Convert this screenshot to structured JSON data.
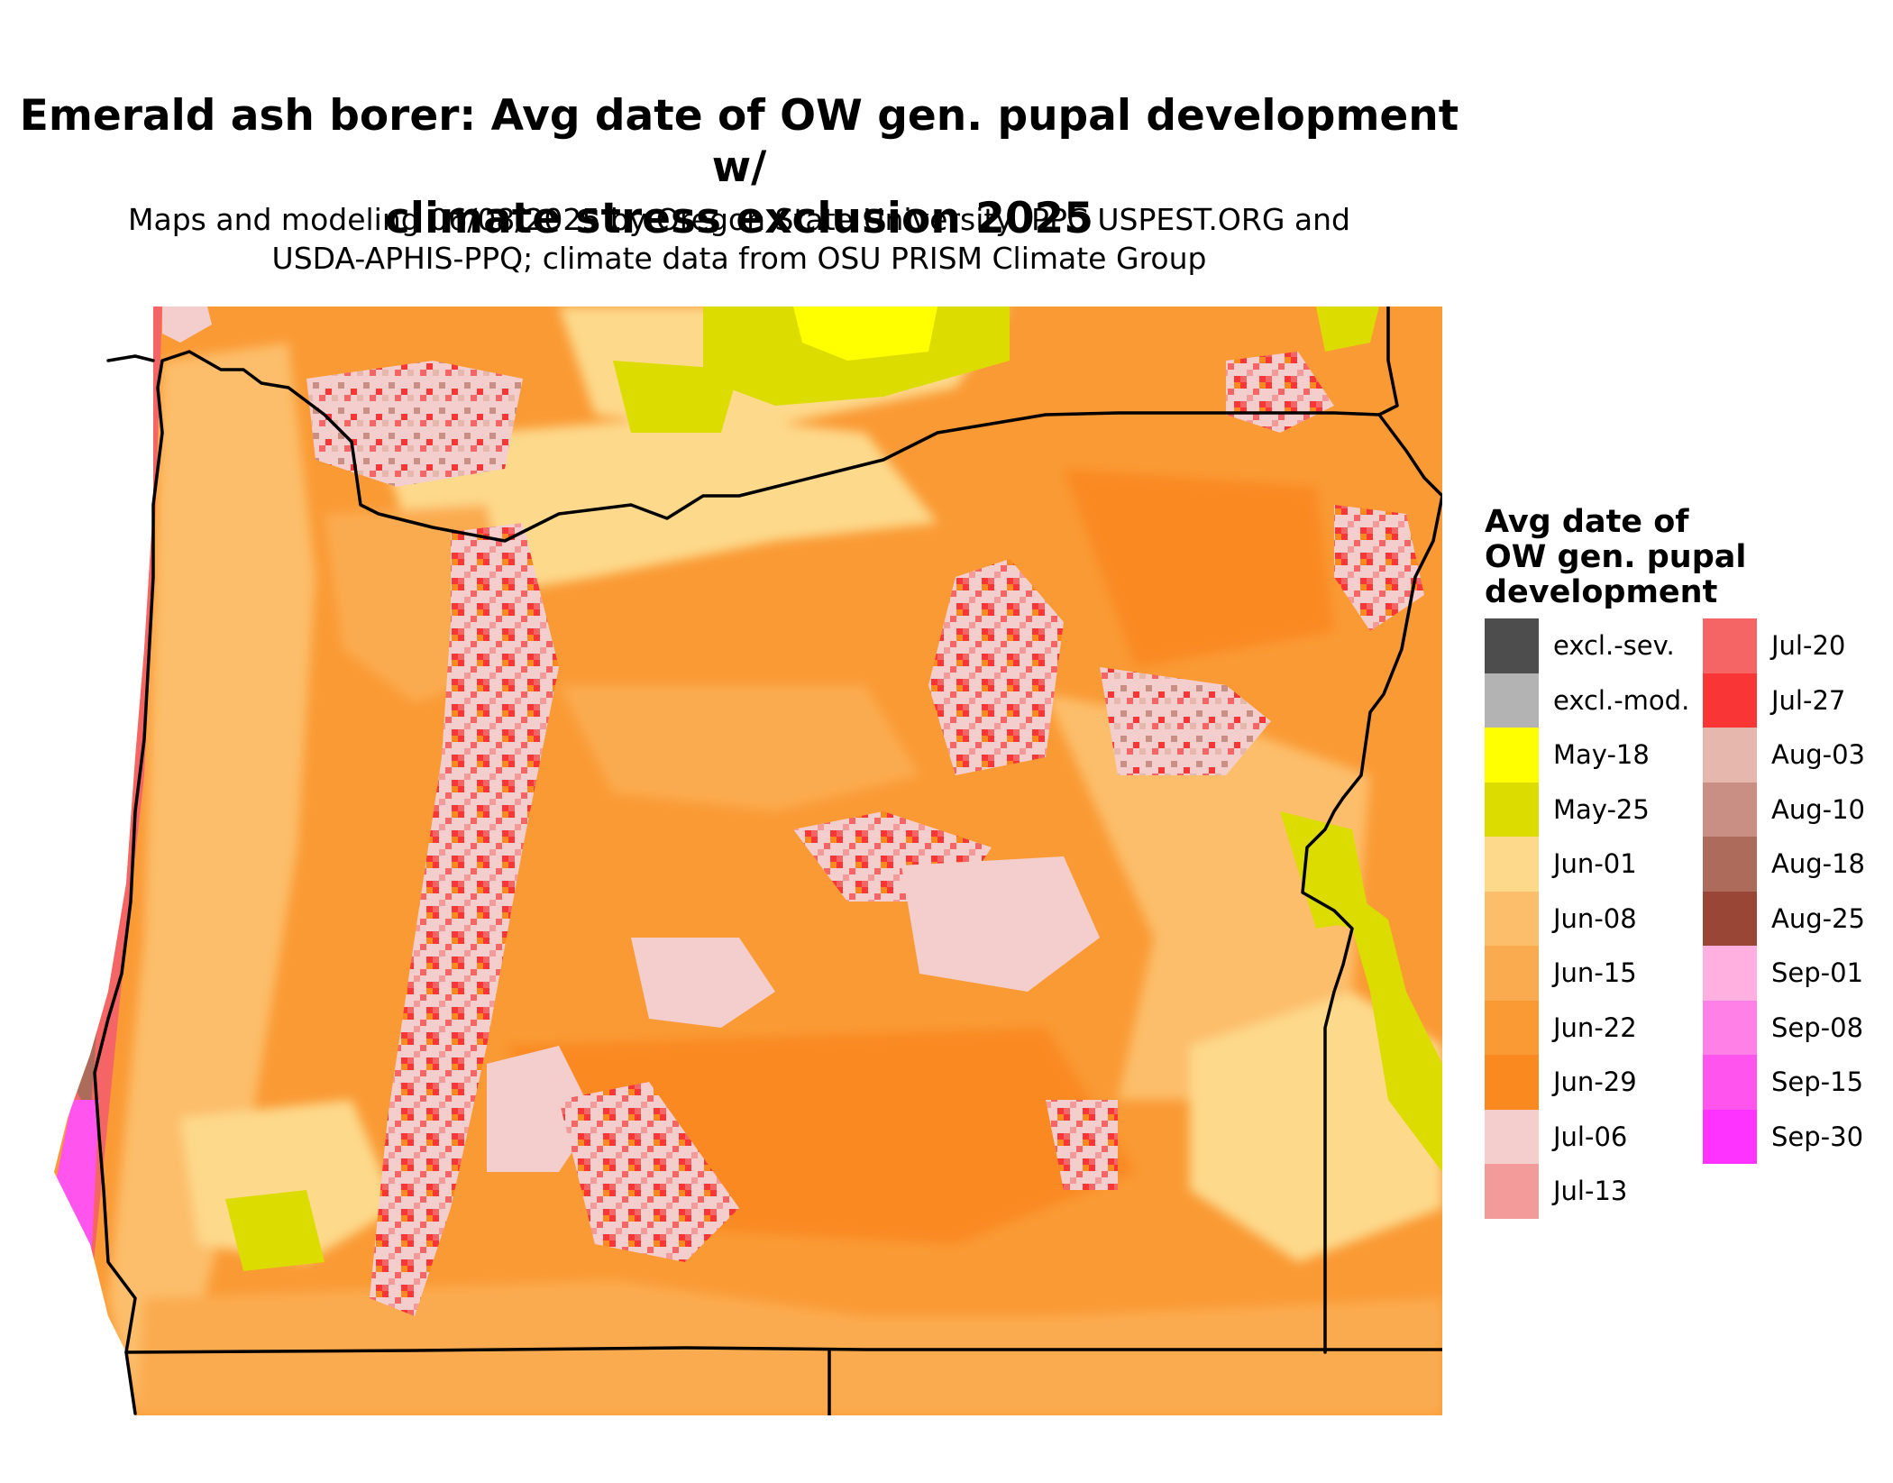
{
  "title_line1": "Emerald ash borer: Avg date of OW gen. pupal development w/",
  "title_line2": "climate stress exclusion 2025",
  "subtitle_line1": "Maps and modeling 06/08/2025 by Oregon State University IPPC USPEST.ORG and",
  "subtitle_line2": "USDA-APHIS-PPQ; climate data from OSU PRISM Climate Group",
  "legend": {
    "title_line1": "Avg date of",
    "title_line2": "OW gen. pupal",
    "title_line3": "development",
    "items_left": [
      {
        "label": "excl.-sev.",
        "color": "#4d4d4d"
      },
      {
        "label": "excl.-mod.",
        "color": "#b3b3b3"
      },
      {
        "label": "May-18",
        "color": "#ffff00"
      },
      {
        "label": "May-25",
        "color": "#dcdc00"
      },
      {
        "label": "Jun-01",
        "color": "#fdd98c"
      },
      {
        "label": "Jun-08",
        "color": "#fcbe6a"
      },
      {
        "label": "Jun-15",
        "color": "#fbab4f"
      },
      {
        "label": "Jun-22",
        "color": "#fa9a35"
      },
      {
        "label": "Jun-29",
        "color": "#fa8920"
      },
      {
        "label": "Jul-06",
        "color": "#f4cdcd"
      },
      {
        "label": "Jul-13",
        "color": "#f39b9b"
      }
    ],
    "items_right": [
      {
        "label": "Jul-20",
        "color": "#f56565"
      },
      {
        "label": "Jul-27",
        "color": "#f93535"
      },
      {
        "label": "Aug-03",
        "color": "#e6b8ad"
      },
      {
        "label": "Aug-10",
        "color": "#c98f85"
      },
      {
        "label": "Aug-18",
        "color": "#ad6b5c"
      },
      {
        "label": "Aug-25",
        "color": "#994636"
      },
      {
        "label": "Sep-01",
        "color": "#ffb0e0"
      },
      {
        "label": "Sep-08",
        "color": "#ff80e6"
      },
      {
        "label": "Sep-15",
        "color": "#ff55ee"
      },
      {
        "label": "Sep-30",
        "color": "#ff33ff"
      }
    ]
  }
}
